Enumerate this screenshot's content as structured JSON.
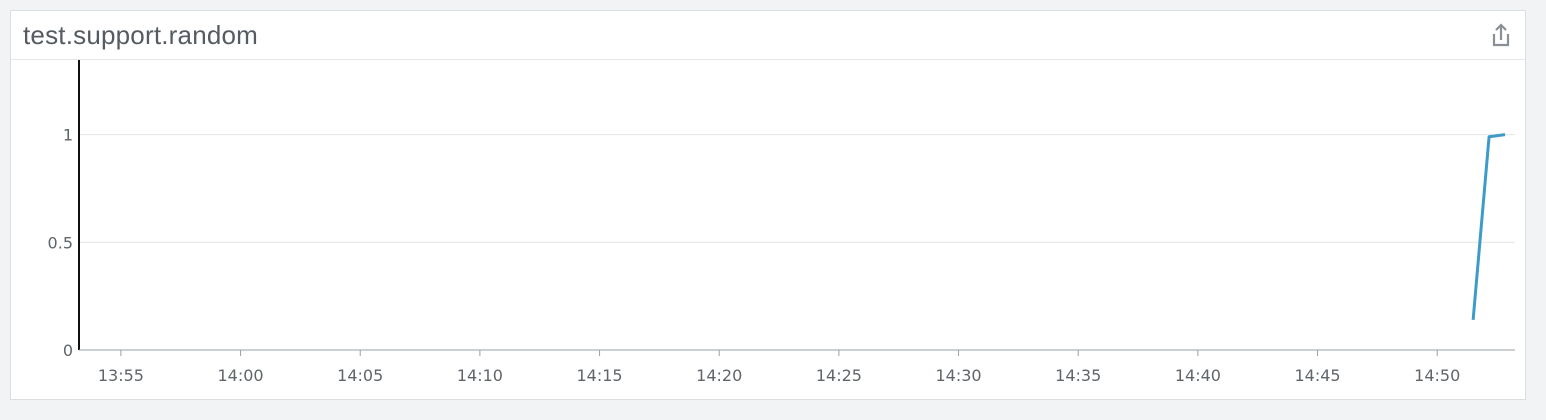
{
  "panel": {
    "title": "test.support.random",
    "share_icon": "share-export-icon"
  },
  "chart_data": {
    "type": "line",
    "title": "test.support.random",
    "xlabel": "",
    "ylabel": "",
    "x_ticks": [
      "13:55",
      "14:00",
      "14:05",
      "14:10",
      "14:15",
      "14:20",
      "14:25",
      "14:30",
      "14:35",
      "14:40",
      "14:45",
      "14:50"
    ],
    "y_ticks": [
      "0",
      "0.5",
      "1"
    ],
    "xlim": [
      "13:53:15",
      "14:53:15"
    ],
    "ylim": [
      0,
      1.3
    ],
    "grid": "horizontal",
    "series": [
      {
        "color": "#3e9bc9",
        "points": [
          {
            "x": "14:51:30",
            "y": 0.14
          },
          {
            "x": "14:52:10",
            "y": 0.99
          },
          {
            "x": "14:52:50",
            "y": 1.0
          }
        ]
      }
    ]
  }
}
